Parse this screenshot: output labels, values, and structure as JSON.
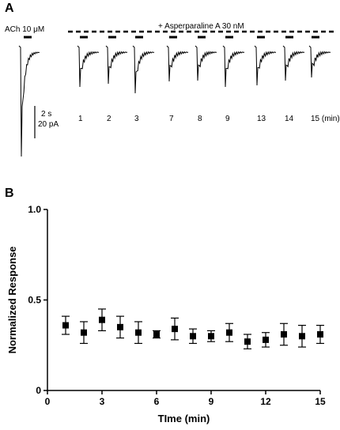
{
  "panel_a": {
    "letter": "A",
    "ach_label": "ACh 10 μM",
    "asp_label": "+ Asperparaline A 30 nM",
    "scale_time": "2 s",
    "scale_current": "20 pA",
    "trace_labels": [
      "1",
      "2",
      "3",
      "7",
      "8",
      "9",
      "13",
      "14",
      "15 (min)"
    ]
  },
  "panel_b": {
    "letter": "B"
  },
  "chart_data": {
    "type": "scatter",
    "xlabel": "TIme (min)",
    "ylabel": "Normalized Response",
    "xlim": [
      0,
      15
    ],
    "ylim": [
      0,
      1.0
    ],
    "xticks": [
      0,
      3,
      6,
      9,
      12,
      15
    ],
    "yticks": [
      0,
      0.5,
      1.0
    ],
    "ytick_labels": [
      "0",
      "0.5",
      "1.0"
    ],
    "grid": false,
    "x": [
      1,
      2,
      3,
      4,
      5,
      6,
      7,
      8,
      9,
      10,
      11,
      12,
      13,
      14,
      15
    ],
    "y": [
      0.36,
      0.32,
      0.39,
      0.35,
      0.32,
      0.31,
      0.34,
      0.3,
      0.3,
      0.32,
      0.27,
      0.28,
      0.31,
      0.3,
      0.31
    ],
    "err": [
      0.05,
      0.06,
      0.06,
      0.06,
      0.06,
      0.02,
      0.06,
      0.04,
      0.03,
      0.05,
      0.04,
      0.04,
      0.06,
      0.06,
      0.05
    ],
    "marker": "square",
    "marker_color": "#000000"
  }
}
